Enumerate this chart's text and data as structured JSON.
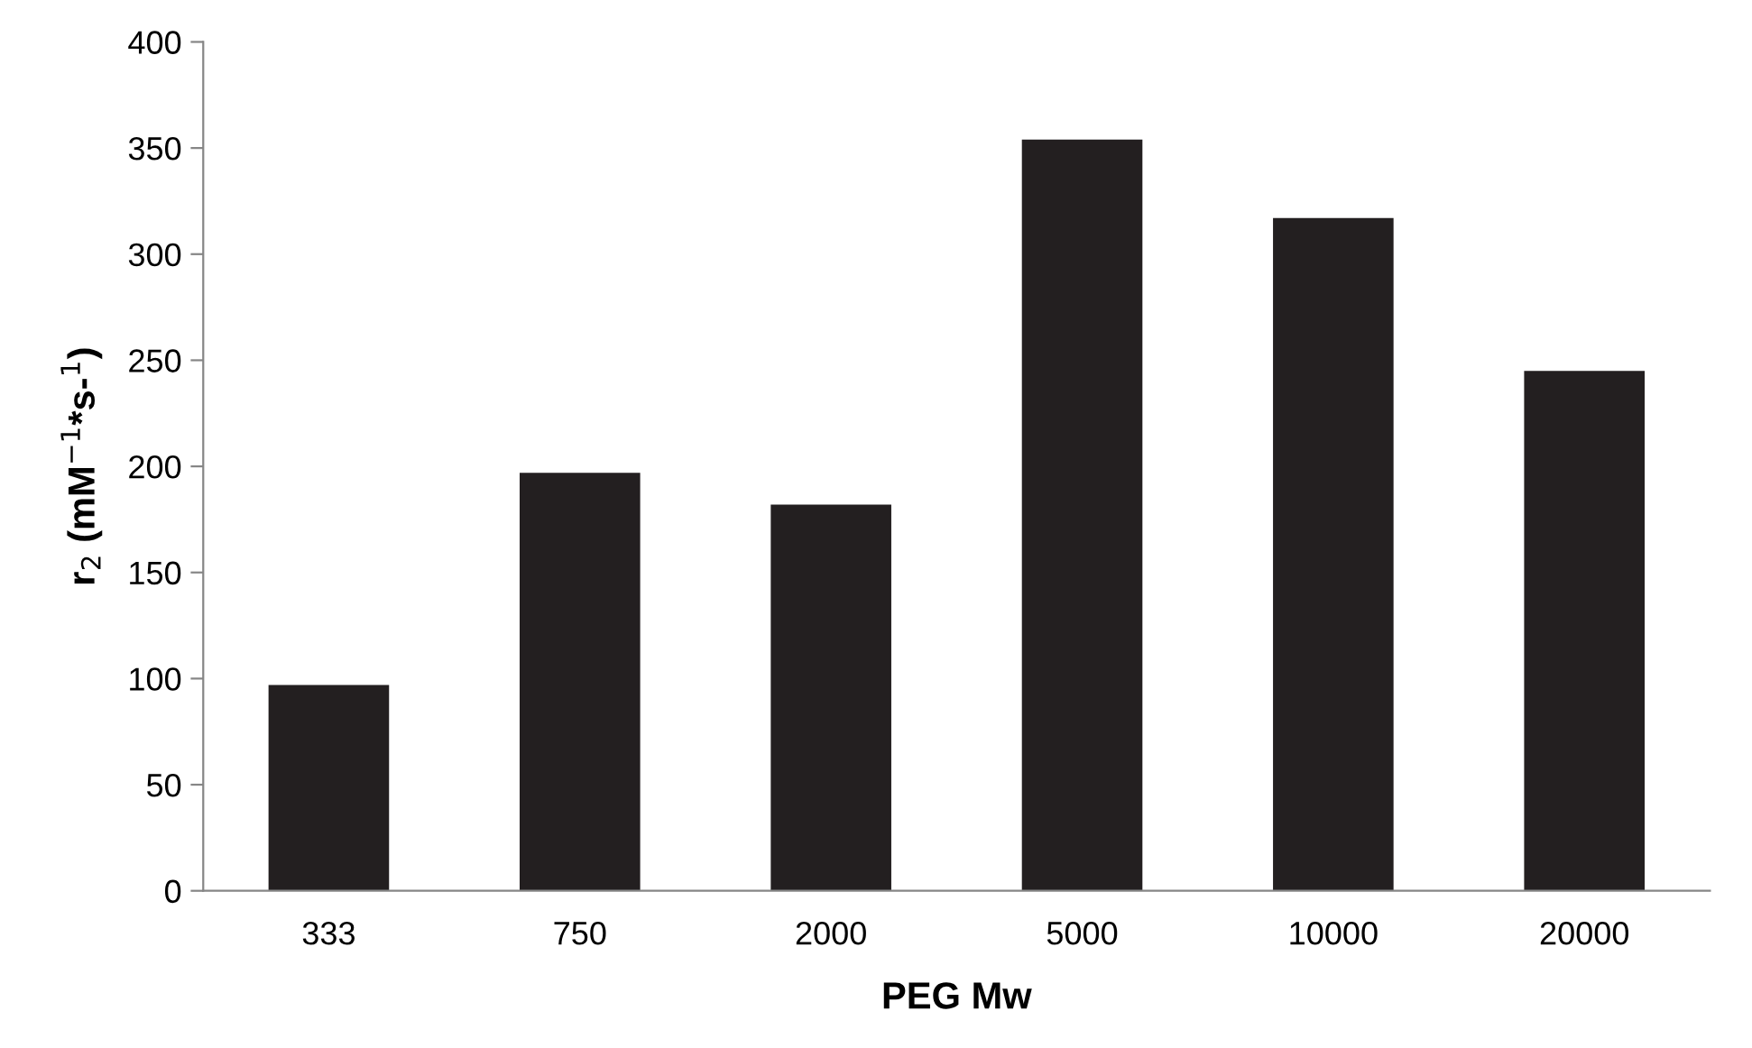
{
  "chart_data": {
    "type": "bar",
    "xlabel": "PEG Mw",
    "ylabel": "r$_{2}$ (mM$^{−1}$*s-$^{1}$)",
    "categories": [
      "333",
      "750",
      "2000",
      "5000",
      "10000",
      "20000"
    ],
    "values": [
      97,
      197,
      182,
      354,
      317,
      245
    ],
    "color": "#231f20",
    "ylim": [
      0,
      400
    ],
    "yticks": [
      0,
      50,
      100,
      150,
      200,
      250,
      300,
      350,
      400
    ],
    "grid": false,
    "legend": false
  }
}
